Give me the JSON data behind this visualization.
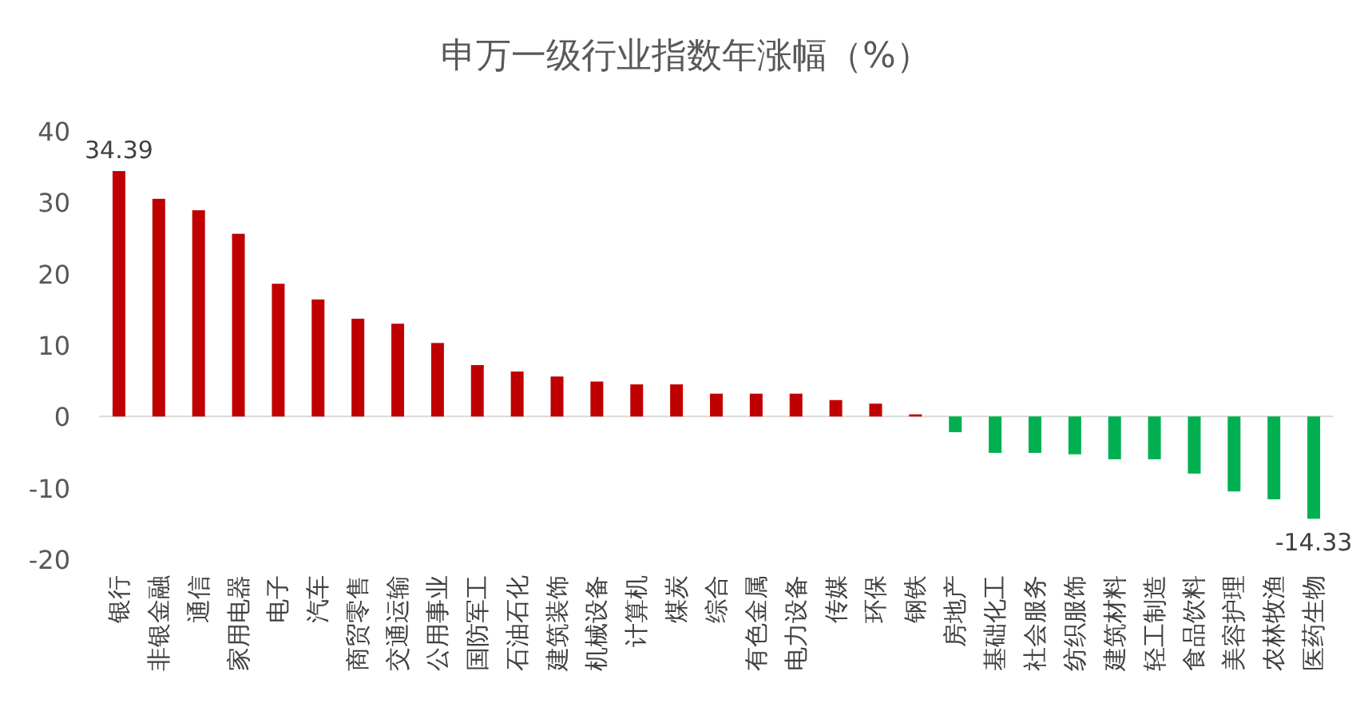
{
  "chart_data": {
    "type": "bar",
    "title": "申万一级行业指数年涨幅（%）",
    "categories": [
      "银行",
      "非银金融",
      "通信",
      "家用电器",
      "电子",
      "汽车",
      "商贸零售",
      "交通运输",
      "公用事业",
      "国防军工",
      "石油石化",
      "建筑装饰",
      "机械设备",
      "计算机",
      "煤炭",
      "综合",
      "有色金属",
      "电力设备",
      "传媒",
      "环保",
      "钢铁",
      "房地产",
      "基础化工",
      "社会服务",
      "纺织服饰",
      "建筑材料",
      "轻工制造",
      "食品饮料",
      "美容护理",
      "农林牧渔",
      "医药生物"
    ],
    "values": [
      34.39,
      30.5,
      28.9,
      25.6,
      18.6,
      16.4,
      13.7,
      13.0,
      10.3,
      7.2,
      6.3,
      5.6,
      4.9,
      4.5,
      4.5,
      3.2,
      3.2,
      3.2,
      2.3,
      1.8,
      0.3,
      -2.2,
      -5.1,
      -5.1,
      -5.3,
      -6.0,
      -6.0,
      -8.0,
      -10.5,
      -11.6,
      -14.33
    ],
    "colors": [
      "#c00000",
      "#c00000",
      "#c00000",
      "#c00000",
      "#c00000",
      "#c00000",
      "#c00000",
      "#c00000",
      "#c00000",
      "#c00000",
      "#c00000",
      "#c00000",
      "#c00000",
      "#c00000",
      "#c00000",
      "#c00000",
      "#c00000",
      "#c00000",
      "#c00000",
      "#c00000",
      "#c00000",
      "#00b050",
      "#00b050",
      "#00b050",
      "#00b050",
      "#00b050",
      "#00b050",
      "#00b050",
      "#00b050",
      "#00b050",
      "#00b050"
    ],
    "value_labels": [
      "34.39",
      null,
      null,
      null,
      null,
      null,
      null,
      null,
      null,
      null,
      null,
      null,
      null,
      null,
      null,
      null,
      null,
      null,
      null,
      null,
      null,
      null,
      null,
      null,
      null,
      null,
      null,
      null,
      null,
      null,
      "-14.33"
    ],
    "ylim": [
      -20,
      40
    ],
    "yticks": [
      -20,
      -10,
      0,
      10,
      20,
      30,
      40
    ]
  }
}
